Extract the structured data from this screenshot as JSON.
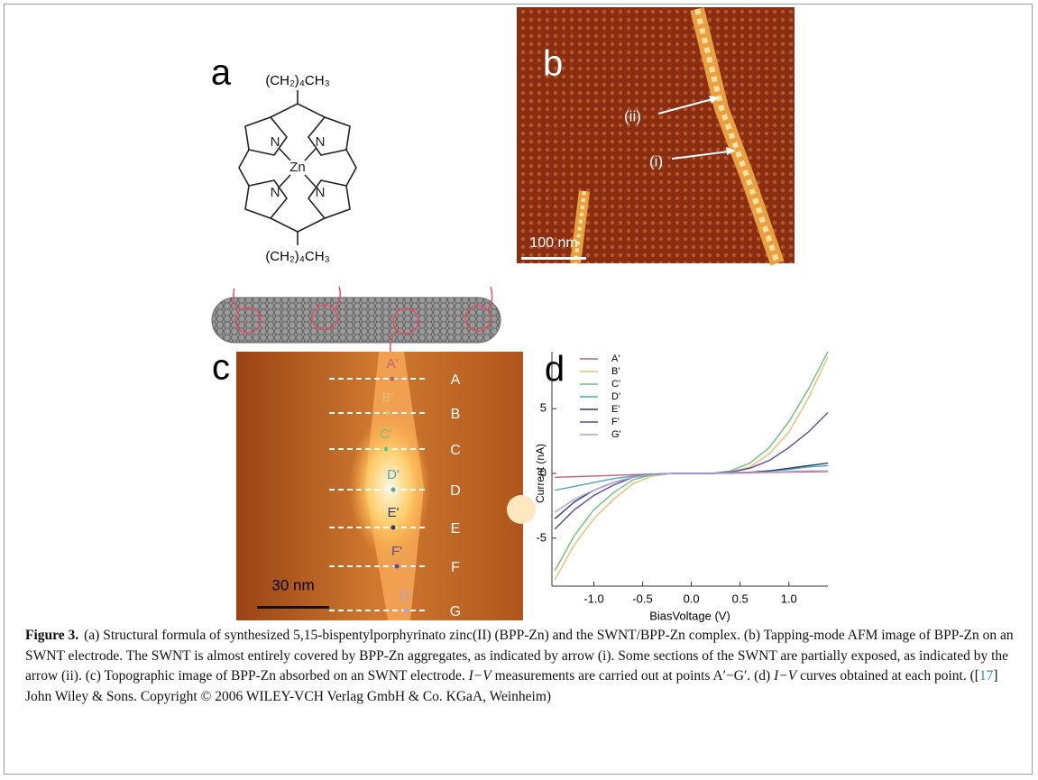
{
  "panels": {
    "a": {
      "label": "a",
      "substituent_top": "(CH₂)₄CH₃",
      "substituent_bottom": "(CH₂)₄CH₃",
      "atoms": [
        "N",
        "N",
        "Zn",
        "N",
        "N"
      ]
    },
    "b": {
      "label": "b",
      "arrow_ii": "(ii)",
      "arrow_i": "(i)",
      "scale_bar": "100 nm"
    },
    "c": {
      "label": "c",
      "lines": [
        "A",
        "B",
        "C",
        "D",
        "E",
        "F",
        "G"
      ],
      "points": [
        "A'",
        "B'",
        "C'",
        "D'",
        "E'",
        "F'",
        "G'"
      ],
      "scale_bar": "30 nm"
    },
    "d": {
      "label": "d"
    }
  },
  "chart_data": {
    "type": "line",
    "x": [
      -1.4,
      -1.2,
      -1.0,
      -0.8,
      -0.6,
      -0.4,
      -0.2,
      0,
      0.2,
      0.4,
      0.6,
      0.8,
      1.0,
      1.2,
      1.4
    ],
    "series": [
      {
        "name": "A'",
        "color": "#c0607a",
        "values": [
          -0.3,
          -0.25,
          -0.2,
          -0.15,
          -0.1,
          -0.05,
          0,
          0,
          0,
          0.02,
          0.05,
          0.08,
          0.1,
          0.12,
          0.15
        ]
      },
      {
        "name": "B'",
        "color": "#e0c070",
        "values": [
          -8.2,
          -5.5,
          -3.5,
          -2,
          -0.8,
          -0.2,
          0,
          0,
          0,
          0.1,
          0.5,
          1.5,
          3.2,
          5.8,
          9
        ]
      },
      {
        "name": "C'",
        "color": "#6cc07a",
        "values": [
          -7.5,
          -4.8,
          -2.8,
          -1.5,
          -0.5,
          -0.1,
          0,
          0,
          0,
          0.2,
          0.8,
          2,
          4,
          6.5,
          9.4
        ]
      },
      {
        "name": "D'",
        "color": "#4aa8b8",
        "values": [
          -1.3,
          -1,
          -0.7,
          -0.4,
          -0.2,
          -0.05,
          0,
          0,
          0,
          0.05,
          0.1,
          0.2,
          0.3,
          0.5,
          0.6
        ]
      },
      {
        "name": "E'",
        "color": "#2a3a6a",
        "values": [
          -3.5,
          -2.2,
          -1.3,
          -0.7,
          -0.3,
          -0.1,
          0,
          0,
          0,
          0.05,
          0.1,
          0.2,
          0.4,
          0.6,
          0.8
        ]
      },
      {
        "name": "F'",
        "color": "#5a4a9a",
        "values": [
          -4.3,
          -2.8,
          -1.7,
          -0.9,
          -0.3,
          -0.1,
          0,
          0,
          0,
          0.1,
          0.4,
          1,
          2,
          3.2,
          4.7
        ]
      },
      {
        "name": "G'",
        "color": "#b0a0d8",
        "values": [
          -3,
          -2,
          -1.3,
          -0.7,
          -0.3,
          -0.1,
          0,
          0,
          0,
          0.05,
          0.1,
          0.1,
          0.15,
          0.2,
          0.2
        ]
      }
    ],
    "xlabel": "BiasVoltage (V)",
    "ylabel": "Current (nA)",
    "xlim": [
      -1.43,
      1.4
    ],
    "ylim": [
      -8.7,
      9.4
    ],
    "xticks": [
      {
        "value": -1,
        "label": "-1.0"
      },
      {
        "value": -0.5,
        "label": "-0.5"
      },
      {
        "value": 0,
        "label": "0.0"
      },
      {
        "value": 0.5,
        "label": "0.5"
      },
      {
        "value": 1,
        "label": "1.0"
      }
    ],
    "yticks": [
      -5,
      0,
      5
    ]
  },
  "caption": {
    "label": "Figure 3.",
    "segments": [
      "(a) Structural formula of synthesized 5,15-bispentylporphyrinato zinc(II) (BPP-Zn) and the SWNT/BPP-Zn complex. (b) Tapping-mode AFM image of BPP-Zn on an SWNT electrode. The SWNT is almost entirely covered by BPP-Zn aggregates, as indicated by arrow (i). Some sections of the SWNT are partially exposed, as indicated by the arrow (ii). (c) Topographic image of BPP-Zn absorbed on an SWNT electrode. ",
      "I−V",
      " measurements are carried out at points A′−G′. (d) ",
      "I−V",
      " curves obtained at each point. ([",
      "17",
      "] John Wiley & Sons. Copyright © 2006 WILEY-VCH Verlag GmbH & Co. KGaA, Weinheim)"
    ]
  }
}
